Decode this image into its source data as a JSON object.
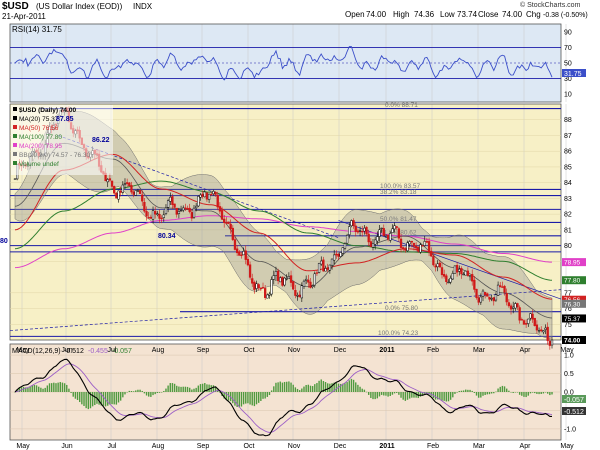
{
  "header": {
    "symbol": "$USD",
    "name": "(US Dollar Index (EOD))",
    "exchange": "INDX",
    "date": "21-Apr-2011",
    "open_label": "Open",
    "open": "74.00",
    "high_label": "High",
    "high": "74.36",
    "low_label": "Low",
    "low": "73.74",
    "close_label": "Close",
    "close": "74.00",
    "chg_label": "Chg",
    "chg": "-0.38 (-0.50%)",
    "credit": "© StockCharts.com"
  },
  "rsi_panel": {
    "label": "RSI(14) 31.75",
    "ticks": [
      "90",
      "70",
      "50",
      "30",
      "10"
    ],
    "value_tag": "31.75",
    "colors": {
      "line": "#3b4fc9",
      "oversold_fill": "#4e96c4",
      "bg": "#dde8f4"
    }
  },
  "price_panel": {
    "legend": [
      {
        "text": "$USD (Daily) 74.00",
        "color": "#000000"
      },
      {
        "text": "MA(20) 75.37",
        "color": "#000000"
      },
      {
        "text": "MA(50) 76.56",
        "color": "#d22222"
      },
      {
        "text": "MA(100) 77.80",
        "color": "#2f7f2f"
      },
      {
        "text": "MA(200) 78.95",
        "color": "#e040c8"
      },
      {
        "text": "BB(20,2.0) 74.57 - 76.30",
        "color": "#777777"
      },
      {
        "text": "Volume undef",
        "color": "#2f7f2f"
      }
    ],
    "y_ticks": [
      "88",
      "87",
      "86",
      "85",
      "84",
      "83",
      "82",
      "81",
      "80",
      "79",
      "77",
      "76",
      "75"
    ],
    "price_tags": [
      {
        "text": "78.95",
        "color": "#e040c8",
        "value": 78.95
      },
      {
        "text": "77.80",
        "color": "#2f7f2f",
        "value": 77.8
      },
      {
        "text": "76.56",
        "color": "#d22222",
        "value": 76.56
      },
      {
        "text": "76.30",
        "color": "#777777",
        "value": 76.3
      },
      {
        "text": "75.37",
        "color": "#000000",
        "value": 75.37
      },
      {
        "text": "74.00",
        "color": "#000000",
        "value": 74.0
      }
    ],
    "fib_levels": [
      {
        "label": "0.0% 88.71",
        "value": 88.71
      },
      {
        "label": "100.0% 83.57",
        "value": 83.57
      },
      {
        "label": "38.2% 83.18",
        "value": 83.18
      },
      {
        "label": "50.0% 81.47",
        "value": 81.47
      },
      {
        "label": "61.8% 80.62",
        "value": 80.62
      },
      {
        "label": "0.0% 75.80",
        "value": 75.8
      },
      {
        "label": "100.0% 74.23",
        "value": 74.23
      }
    ],
    "annotations": [
      "87.85",
      "86.22",
      "80.34",
      "80"
    ]
  },
  "macd_panel": {
    "label": "MACD(12,26,9)",
    "macd_value": "-0.512",
    "signal_value": "-0.455",
    "hist_value": "-0.057",
    "ticks": [
      "1.0",
      "0.5",
      "0.0",
      "-0.5",
      "-1.0"
    ],
    "value_tags": [
      "-0.057",
      "-0.512"
    ]
  },
  "x_axis": {
    "months": [
      "May",
      "Jun",
      "Jul",
      "Aug",
      "Sep",
      "Oct",
      "Nov",
      "Dec",
      "2011",
      "Feb",
      "Mar",
      "Apr",
      "May"
    ]
  },
  "chart_data": {
    "type": "line",
    "x": [
      "2010-05",
      "2010-06",
      "2010-07",
      "2010-08",
      "2010-09",
      "2010-10",
      "2010-11",
      "2010-12",
      "2011-01",
      "2011-02",
      "2011-03",
      "2011-04"
    ],
    "series": [
      {
        "name": "$USD (Daily)",
        "values": [
          84.5,
          88.0,
          84.0,
          82.0,
          83.0,
          77.5,
          77.6,
          80.8,
          80.4,
          78.1,
          76.6,
          74.0
        ]
      },
      {
        "name": "MA(20)",
        "values": [
          82.5,
          86.5,
          85.5,
          82.4,
          82.2,
          79.0,
          77.4,
          79.9,
          80.6,
          78.6,
          77.0,
          75.4
        ]
      },
      {
        "name": "MA(50)",
        "values": [
          81.0,
          84.8,
          85.8,
          83.6,
          82.6,
          80.8,
          78.4,
          78.9,
          79.8,
          79.4,
          78.0,
          76.6
        ]
      },
      {
        "name": "MA(100)",
        "values": [
          79.8,
          82.2,
          83.6,
          84.1,
          83.4,
          82.2,
          80.8,
          80.0,
          79.6,
          79.5,
          79.0,
          77.8
        ]
      },
      {
        "name": "MA(200)",
        "values": [
          78.6,
          79.8,
          80.8,
          81.6,
          81.9,
          81.7,
          81.2,
          80.9,
          80.6,
          80.1,
          79.5,
          78.95
        ]
      }
    ],
    "ylim": [
      74,
      89
    ]
  }
}
